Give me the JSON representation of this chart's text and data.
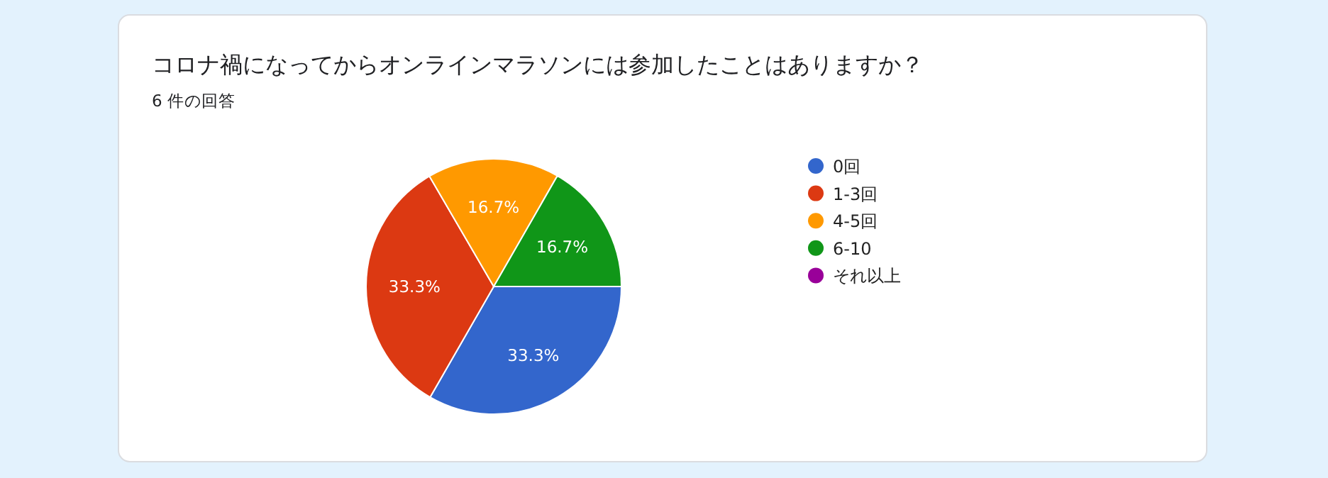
{
  "chart_data": {
    "type": "pie",
    "title": "コロナ禍になってからオンラインマラソンには参加したことはありますか？",
    "subtitle": "6 件の回答",
    "categories": [
      "0回",
      "1-3回",
      "4-5回",
      "6-10",
      "それ以上"
    ],
    "values": [
      33.3,
      33.3,
      16.7,
      16.7,
      0
    ],
    "value_labels": [
      "33.3%",
      "33.3%",
      "16.7%",
      "16.7%",
      null
    ],
    "colors": [
      "#3366cc",
      "#dc3912",
      "#ff9900",
      "#109618",
      "#990099"
    ],
    "legend": "right"
  }
}
